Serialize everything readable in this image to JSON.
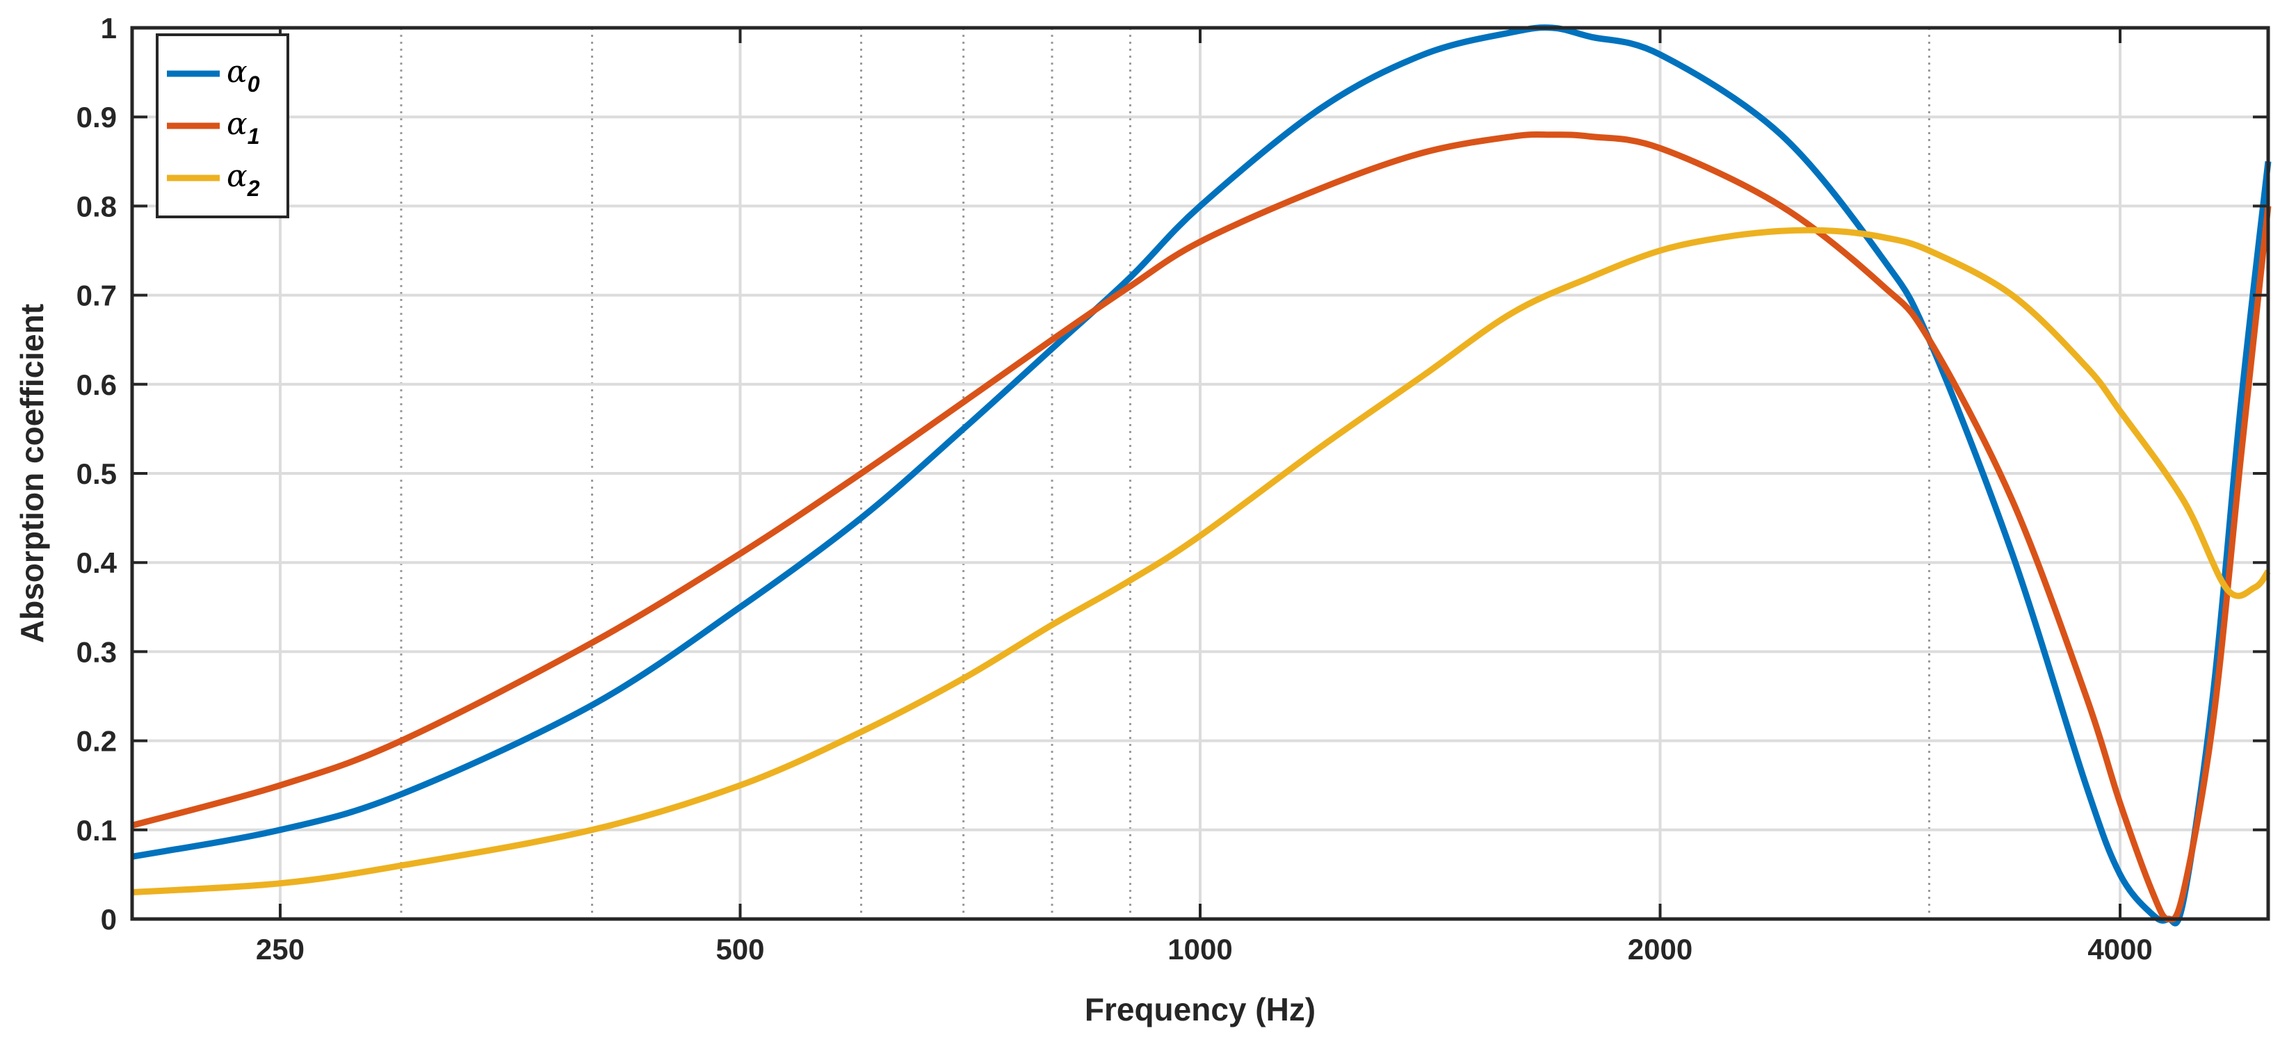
{
  "chart_data": {
    "type": "line",
    "title": "",
    "xlabel": "Frequency (Hz)",
    "ylabel": "Absorption coefficient",
    "xscale": "log",
    "xlim": [
      200,
      5000
    ],
    "ylim": [
      0,
      1
    ],
    "xticks": [
      250,
      500,
      1000,
      2000,
      4000
    ],
    "xtick_labels": [
      "250",
      "500",
      "1000",
      "2000",
      "4000"
    ],
    "yticks": [
      0,
      0.1,
      0.2,
      0.3,
      0.4,
      0.5,
      0.6,
      0.7,
      0.8,
      0.9,
      1
    ],
    "ytick_labels": [
      "0",
      "0.1",
      "0.2",
      "0.3",
      "0.4",
      "0.5",
      "0.6",
      "0.7",
      "0.8",
      "0.9",
      "1"
    ],
    "minor_xgrid": [
      300,
      400,
      600,
      700,
      800,
      900,
      3000
    ],
    "grid": true,
    "legend_position": "top-left",
    "series": [
      {
        "name": "α0",
        "symbol": "α",
        "subscript": "0",
        "color": "#0072BD",
        "x": [
          200,
          250,
          300,
          400,
          500,
          600,
          700,
          800,
          900,
          1000,
          1200,
          1400,
          1600,
          1700,
          1800,
          2000,
          2400,
          2800,
          3000,
          3400,
          3800,
          4000,
          4200,
          4300,
          4400,
          4600,
          4800,
          5000
        ],
        "y": [
          0.07,
          0.1,
          0.14,
          0.24,
          0.35,
          0.45,
          0.55,
          0.64,
          0.72,
          0.8,
          0.91,
          0.97,
          0.995,
          1.0,
          0.99,
          0.97,
          0.88,
          0.74,
          0.65,
          0.41,
          0.15,
          0.05,
          0.005,
          0.0,
          0.02,
          0.25,
          0.58,
          0.85
        ]
      },
      {
        "name": "α1",
        "symbol": "α",
        "subscript": "1",
        "color": "#D95319",
        "x": [
          200,
          250,
          300,
          400,
          500,
          600,
          700,
          800,
          900,
          1000,
          1200,
          1400,
          1600,
          1700,
          1800,
          2000,
          2400,
          2800,
          3000,
          3400,
          3800,
          4000,
          4200,
          4300,
          4400,
          4600,
          4800,
          5000
        ],
        "y": [
          0.105,
          0.15,
          0.2,
          0.31,
          0.41,
          0.5,
          0.58,
          0.65,
          0.71,
          0.76,
          0.82,
          0.86,
          0.878,
          0.88,
          0.878,
          0.865,
          0.8,
          0.71,
          0.65,
          0.47,
          0.25,
          0.13,
          0.03,
          0.0,
          0.03,
          0.22,
          0.52,
          0.8
        ]
      },
      {
        "name": "α2",
        "symbol": "α",
        "subscript": "2",
        "color": "#EDB120",
        "x": [
          200,
          250,
          300,
          400,
          500,
          600,
          700,
          800,
          900,
          1000,
          1200,
          1400,
          1600,
          1800,
          2000,
          2200,
          2400,
          2600,
          2800,
          3000,
          3400,
          3800,
          4000,
          4400,
          4700,
          4900,
          5000
        ],
        "y": [
          0.03,
          0.04,
          0.06,
          0.1,
          0.15,
          0.21,
          0.27,
          0.33,
          0.38,
          0.43,
          0.53,
          0.61,
          0.68,
          0.72,
          0.75,
          0.765,
          0.772,
          0.772,
          0.765,
          0.75,
          0.7,
          0.62,
          0.57,
          0.47,
          0.37,
          0.372,
          0.39
        ]
      }
    ]
  }
}
